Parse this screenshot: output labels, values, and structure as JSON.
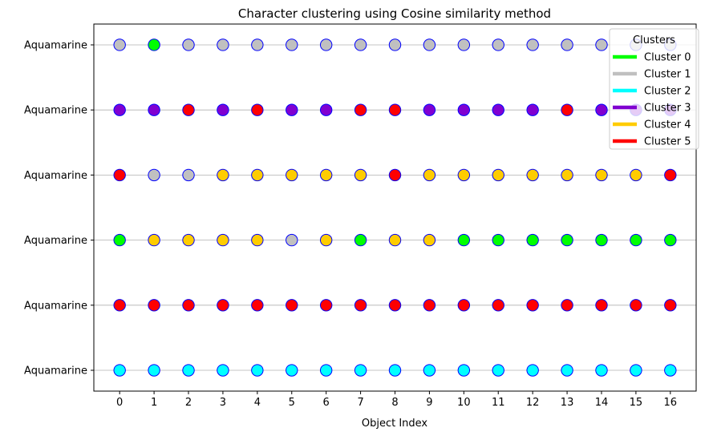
{
  "chart_data": {
    "type": "scatter",
    "title": "Character clustering using Cosine similarity method",
    "xlabel": "Object Index",
    "ylabel": "",
    "x": [
      0,
      1,
      2,
      3,
      4,
      5,
      6,
      7,
      8,
      9,
      10,
      11,
      12,
      13,
      14,
      15,
      16
    ],
    "xlim": [
      -0.75,
      16.75
    ],
    "rows": [
      {
        "label": "Aquamarine",
        "clusters": [
          1,
          0,
          1,
          1,
          1,
          1,
          1,
          1,
          1,
          1,
          1,
          1,
          1,
          1,
          1,
          1,
          1
        ]
      },
      {
        "label": "Aquamarine",
        "clusters": [
          3,
          3,
          5,
          3,
          5,
          3,
          3,
          5,
          5,
          3,
          3,
          3,
          3,
          5,
          3,
          3,
          3
        ]
      },
      {
        "label": "Aquamarine",
        "clusters": [
          5,
          1,
          1,
          4,
          4,
          4,
          4,
          4,
          5,
          4,
          4,
          4,
          4,
          4,
          4,
          4,
          5
        ]
      },
      {
        "label": "Aquamarine",
        "clusters": [
          0,
          4,
          4,
          4,
          4,
          1,
          4,
          0,
          4,
          4,
          0,
          0,
          0,
          0,
          0,
          0,
          0
        ]
      },
      {
        "label": "Aquamarine",
        "clusters": [
          5,
          5,
          5,
          5,
          5,
          5,
          5,
          5,
          5,
          5,
          5,
          5,
          5,
          5,
          5,
          5,
          5
        ]
      },
      {
        "label": "Aquamarine",
        "clusters": [
          2,
          2,
          2,
          2,
          2,
          2,
          2,
          2,
          2,
          2,
          2,
          2,
          2,
          2,
          2,
          2,
          2
        ]
      }
    ],
    "grid": "horizontal",
    "marker_edge_color": "#0000ff",
    "legend": {
      "title": "Clusters",
      "placement": "top-right",
      "entries": [
        {
          "label": "Cluster 0",
          "color": "#00ff00"
        },
        {
          "label": "Cluster 1",
          "color": "#c0c0c0"
        },
        {
          "label": "Cluster 2",
          "color": "#00ffff"
        },
        {
          "label": "Cluster 3",
          "color": "#8000d0"
        },
        {
          "label": "Cluster 4",
          "color": "#ffcc00"
        },
        {
          "label": "Cluster 5",
          "color": "#ff0000"
        }
      ]
    }
  }
}
